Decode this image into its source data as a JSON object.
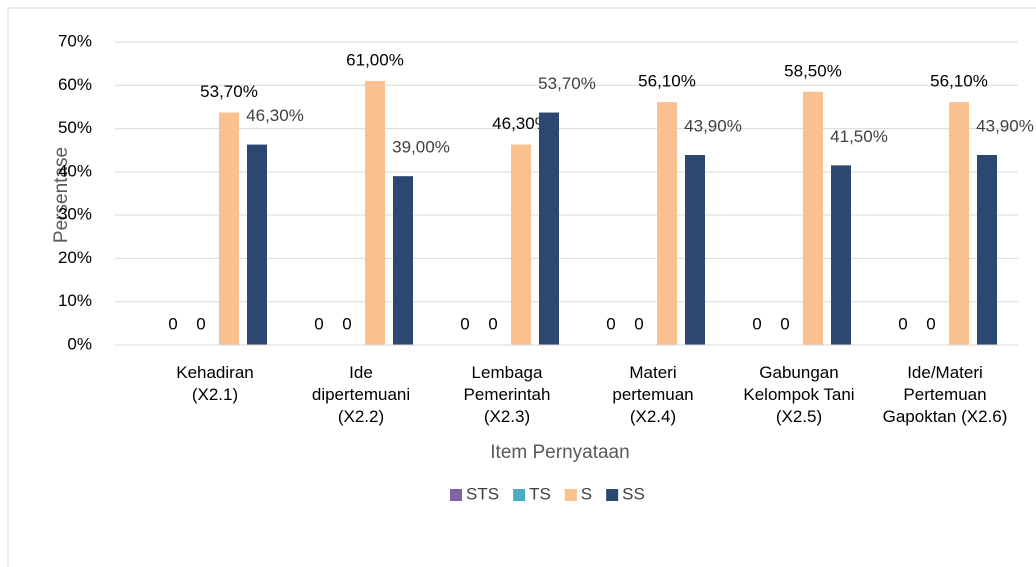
{
  "chart_data": {
    "type": "bar",
    "y_label": "Persentase",
    "x_label": "Item Pernyataan",
    "categories": [
      "Kehadiran\n(X2.1)",
      "Ide\ndipertemuani\n(X2.2)",
      "Lembaga\nPemerintah\n(X2.3)",
      "Materi\npertemuan\n(X2.4)",
      "Gabungan\nKelompok Tani\n(X2.5)",
      "Ide/Materi\nPertemuan\nGapoktan (X2.6)"
    ],
    "series": [
      {
        "name": "STS",
        "color": "#8064a2",
        "values": [
          0,
          0,
          0,
          0,
          0,
          0
        ],
        "value_labels": [
          "0",
          "0",
          "0",
          "0",
          "0",
          "0"
        ]
      },
      {
        "name": "TS",
        "color": "#4bacc6",
        "values": [
          0,
          0,
          0,
          0,
          0,
          0
        ],
        "value_labels": [
          "0",
          "0",
          "0",
          "0",
          "0",
          "0"
        ]
      },
      {
        "name": "S",
        "color": "#fac090",
        "values": [
          53.7,
          61.0,
          46.3,
          56.1,
          58.5,
          56.1
        ],
        "value_labels": [
          "53,70%",
          "61,00%",
          "46,30%",
          "56,10%",
          "58,50%",
          "56,10%"
        ]
      },
      {
        "name": "SS",
        "color": "#2c4770",
        "values": [
          46.3,
          39.0,
          53.7,
          43.9,
          41.5,
          43.9
        ],
        "value_labels": [
          "46,30%",
          "39,00%",
          "53,70%",
          "43,90%",
          "41,50%",
          "43,90%"
        ]
      }
    ],
    "ylim": [
      0,
      70
    ],
    "yticks": [
      {
        "value": 0,
        "label": "0%"
      },
      {
        "value": 10,
        "label": "10%"
      },
      {
        "value": 20,
        "label": "20%"
      },
      {
        "value": 30,
        "label": "30%"
      },
      {
        "value": 40,
        "label": "40%"
      },
      {
        "value": 50,
        "label": "50%"
      },
      {
        "value": 60,
        "label": "60%"
      },
      {
        "value": 70,
        "label": "70%"
      }
    ],
    "grid": true,
    "legend": "bottom"
  }
}
